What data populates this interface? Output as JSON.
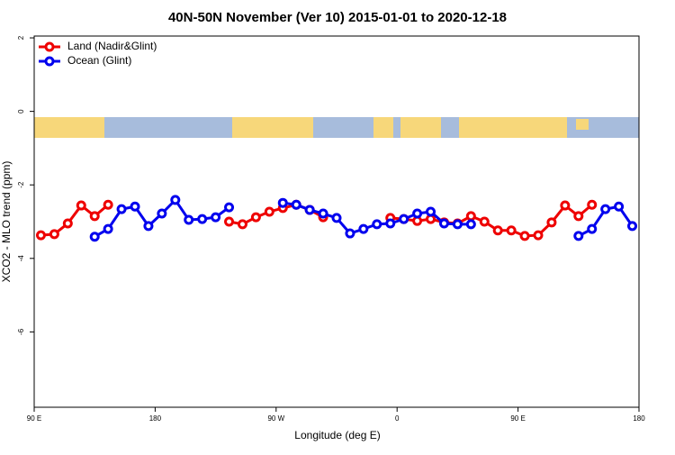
{
  "chart_data": {
    "type": "line",
    "title": "40N-50N November (Ver 10)   2015-01-01 to 2020-12-18",
    "x_label": "Longitude (deg E)",
    "y_label": "XCO2 - MLO trend (ppm)",
    "xlim": [
      90,
      540
    ],
    "ylim": [
      -8.05,
      2.05
    ],
    "xticks": [
      {
        "value": 90,
        "label": "90 E"
      },
      {
        "value": 180,
        "label": "180"
      },
      {
        "value": 270,
        "label": "90 W"
      },
      {
        "value": 360,
        "label": "0"
      },
      {
        "value": 450,
        "label": "90 E"
      },
      {
        "value": 540,
        "label": "180"
      }
    ],
    "yticks": [
      2,
      0,
      -2,
      -4,
      -6
    ],
    "legend": "top-left",
    "series": [
      {
        "name": "Land (Nadir&Glint)",
        "color": "#ee0000",
        "x": [
          95,
          105,
          115,
          125,
          135,
          145,
          155,
          235,
          245,
          255,
          265,
          275,
          285,
          295,
          305,
          315,
          355,
          365,
          375,
          385,
          395,
          405,
          415,
          425,
          435,
          445,
          455,
          465,
          475,
          485,
          495,
          505
        ],
        "values": [
          -3.37,
          -3.34,
          -3.05,
          -2.56,
          -2.85,
          -2.54,
          null,
          -3.0,
          -3.07,
          -2.88,
          -2.73,
          -2.63,
          -2.54,
          -2.68,
          -2.88,
          null,
          -2.9,
          -2.93,
          -2.98,
          -2.93,
          -3.02,
          -3.05,
          -2.85,
          -3.0,
          -3.24,
          -3.24,
          -3.39,
          -3.37,
          -3.02,
          -2.56,
          -2.85,
          -2.54
        ]
      },
      {
        "name": "Ocean (Glint)",
        "color": "#0000ee",
        "x": [
          135,
          145,
          155,
          165,
          175,
          185,
          195,
          205,
          215,
          225,
          235,
          255,
          275,
          285,
          295,
          305,
          315,
          325,
          335,
          345,
          355,
          365,
          375,
          385,
          395,
          405,
          415,
          455,
          495,
          505,
          515,
          525,
          535
        ],
        "values": [
          -3.41,
          -3.2,
          -2.66,
          -2.59,
          -3.12,
          -2.78,
          -2.41,
          -2.95,
          -2.93,
          -2.88,
          -2.61,
          null,
          -2.49,
          -2.54,
          -2.68,
          -2.78,
          -2.9,
          -3.32,
          -3.2,
          -3.07,
          -3.05,
          -2.93,
          -2.78,
          -2.73,
          -3.05,
          -3.07,
          -3.07,
          null,
          -3.39,
          -3.2,
          -2.66,
          -2.59,
          -3.12
        ]
      }
    ]
  }
}
